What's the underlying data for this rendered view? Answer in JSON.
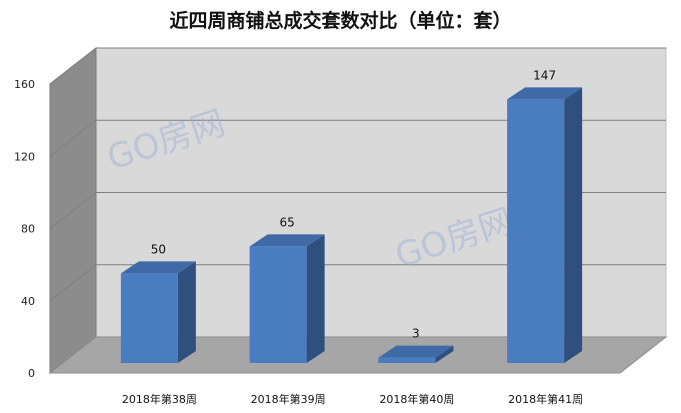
{
  "chart_data": {
    "type": "bar",
    "title": "近四周商铺总成交套数对比（单位：套）",
    "categories": [
      "2018年第38周",
      "2018年第39周",
      "2018年第40周",
      "2018年第41周"
    ],
    "values": [
      50,
      65,
      3,
      147
    ],
    "yticks": [
      "0",
      "40",
      "80",
      "120",
      "160"
    ],
    "ylim": [
      0,
      160
    ],
    "xlabel": "",
    "ylabel": "",
    "grid": true,
    "legend": "none",
    "colors": {
      "bar_front": "#4a7cc0",
      "bar_side": "#2f4f7f",
      "bar_top": "#3f6aa6",
      "back_wall": "#d9d9d9",
      "left_wall": "#8c8c8c",
      "floor": "#a6a6a6",
      "grid": "#7f7f7f"
    }
  },
  "watermark": {
    "text": "GO房网"
  }
}
